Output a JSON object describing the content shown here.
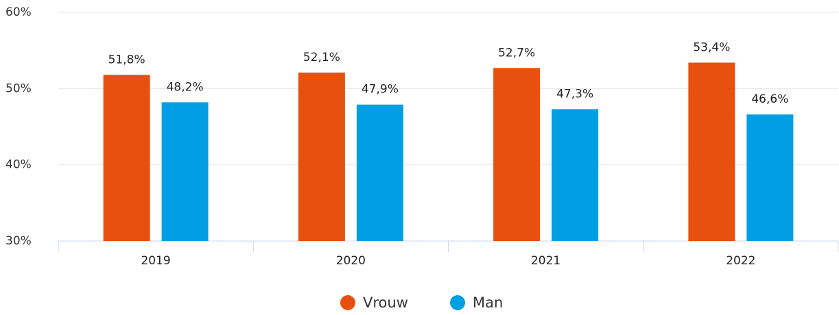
{
  "chart_data": {
    "type": "bar",
    "categories": [
      "2019",
      "2020",
      "2021",
      "2022"
    ],
    "series": [
      {
        "name": "Vrouw",
        "color": "#e8500f",
        "values": [
          51.8,
          52.1,
          52.7,
          53.4
        ],
        "value_labels": [
          "51,8%",
          "52,1%",
          "52,7%",
          "53,4%"
        ]
      },
      {
        "name": "Man",
        "color": "#009fe3",
        "values": [
          48.2,
          47.9,
          47.3,
          46.6
        ],
        "value_labels": [
          "48,2%",
          "47,9%",
          "47,3%",
          "46,6%"
        ]
      }
    ],
    "ylim": [
      30,
      60
    ],
    "yticks": [
      {
        "value": 30,
        "label": "30%"
      },
      {
        "value": 40,
        "label": "40%"
      },
      {
        "value": 50,
        "label": "50%"
      },
      {
        "value": 60,
        "label": "60%"
      }
    ],
    "grid": true
  }
}
